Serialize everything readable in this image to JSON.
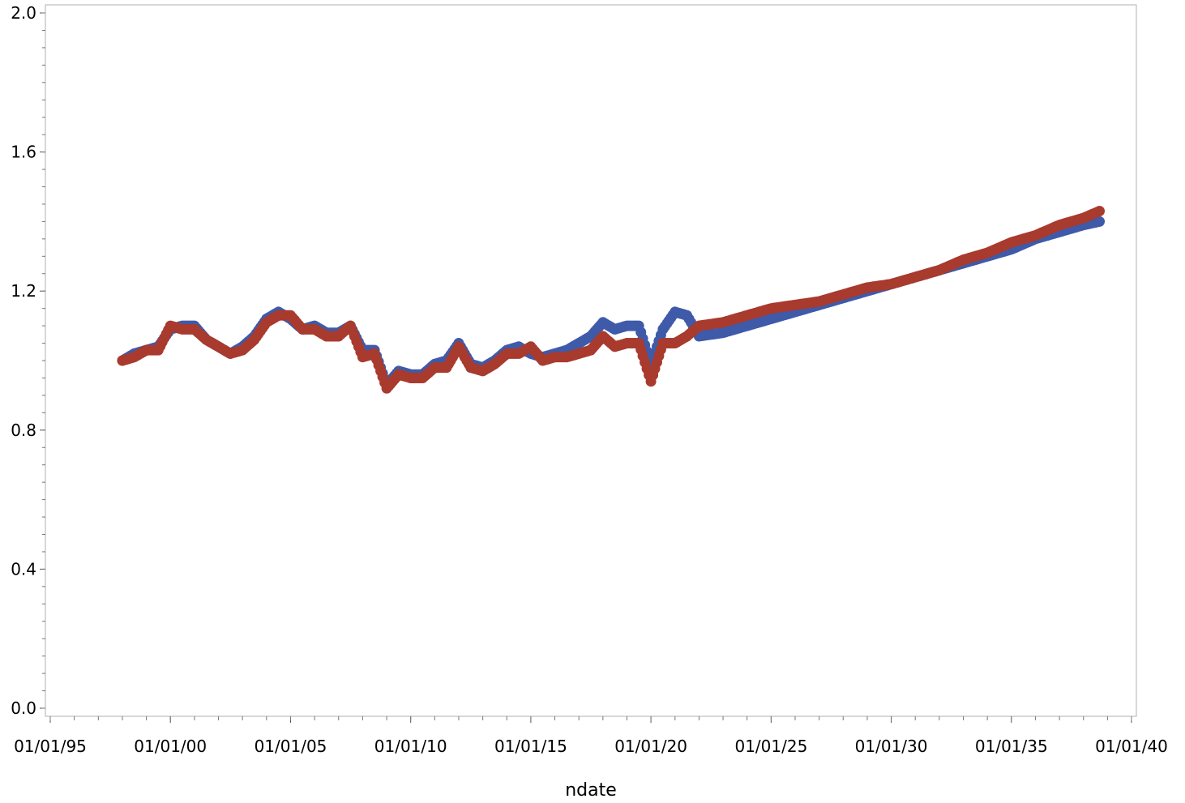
{
  "chart_data": {
    "type": "scatter",
    "title": "",
    "xlabel": "ndate",
    "ylabel": "",
    "x_axis": {
      "type": "date",
      "min": "1995-01-01",
      "max": "2040-01-01",
      "ticks": [
        {
          "value": "1995-01-01",
          "label": "01/01/95"
        },
        {
          "value": "2000-01-01",
          "label": "01/01/00"
        },
        {
          "value": "2005-01-01",
          "label": "01/01/05"
        },
        {
          "value": "2010-01-01",
          "label": "01/01/10"
        },
        {
          "value": "2015-01-01",
          "label": "01/01/15"
        },
        {
          "value": "2020-01-01",
          "label": "01/01/20"
        },
        {
          "value": "2025-01-01",
          "label": "01/01/25"
        },
        {
          "value": "2030-01-01",
          "label": "01/01/30"
        },
        {
          "value": "2035-01-01",
          "label": "01/01/35"
        },
        {
          "value": "2040-01-01",
          "label": "01/01/40"
        }
      ]
    },
    "y_axis": {
      "min": 0.0,
      "max": 2.0,
      "ticks": [
        {
          "value": 0.0,
          "label": "0.0"
        },
        {
          "value": 0.4,
          "label": "0.4"
        },
        {
          "value": 0.8,
          "label": "0.8"
        },
        {
          "value": 1.2,
          "label": "1.2"
        },
        {
          "value": 1.6,
          "label": "1.6"
        },
        {
          "value": 2.0,
          "label": "2.0"
        }
      ]
    },
    "grid": false,
    "legend": "none",
    "series": [
      {
        "color": "#3f5aa8",
        "points": [
          [
            "1998-01-01",
            1.0
          ],
          [
            "1998-07-01",
            1.02
          ],
          [
            "1999-01-01",
            1.03
          ],
          [
            "1999-07-01",
            1.04
          ],
          [
            "2000-01-01",
            1.09
          ],
          [
            "2000-07-01",
            1.1
          ],
          [
            "2001-01-01",
            1.1
          ],
          [
            "2001-07-01",
            1.06
          ],
          [
            "2002-01-01",
            1.04
          ],
          [
            "2002-07-01",
            1.02
          ],
          [
            "2003-01-01",
            1.04
          ],
          [
            "2003-07-01",
            1.07
          ],
          [
            "2004-01-01",
            1.12
          ],
          [
            "2004-07-01",
            1.14
          ],
          [
            "2005-01-01",
            1.12
          ],
          [
            "2005-07-01",
            1.09
          ],
          [
            "2006-01-01",
            1.1
          ],
          [
            "2006-07-01",
            1.08
          ],
          [
            "2007-01-01",
            1.08
          ],
          [
            "2007-07-01",
            1.1
          ],
          [
            "2008-01-01",
            1.03
          ],
          [
            "2008-07-01",
            1.03
          ],
          [
            "2009-01-01",
            0.93
          ],
          [
            "2009-07-01",
            0.97
          ],
          [
            "2010-01-01",
            0.96
          ],
          [
            "2010-07-01",
            0.96
          ],
          [
            "2011-01-01",
            0.99
          ],
          [
            "2011-07-01",
            1.0
          ],
          [
            "2012-01-01",
            1.05
          ],
          [
            "2012-07-01",
            0.99
          ],
          [
            "2013-01-01",
            0.98
          ],
          [
            "2013-07-01",
            1.0
          ],
          [
            "2014-01-01",
            1.03
          ],
          [
            "2014-07-01",
            1.04
          ],
          [
            "2015-01-01",
            1.02
          ],
          [
            "2015-07-01",
            1.01
          ],
          [
            "2016-01-01",
            1.02
          ],
          [
            "2016-07-01",
            1.03
          ],
          [
            "2017-01-01",
            1.05
          ],
          [
            "2017-07-01",
            1.07
          ],
          [
            "2018-01-01",
            1.11
          ],
          [
            "2018-07-01",
            1.09
          ],
          [
            "2019-01-01",
            1.1
          ],
          [
            "2019-07-01",
            1.1
          ],
          [
            "2020-01-01",
            0.99
          ],
          [
            "2020-07-01",
            1.09
          ],
          [
            "2021-01-01",
            1.14
          ],
          [
            "2021-07-01",
            1.13
          ],
          [
            "2022-01-01",
            1.07
          ],
          [
            "2023-01-01",
            1.08
          ],
          [
            "2024-01-01",
            1.1
          ],
          [
            "2025-01-01",
            1.12
          ],
          [
            "2026-01-01",
            1.14
          ],
          [
            "2027-01-01",
            1.16
          ],
          [
            "2028-01-01",
            1.18
          ],
          [
            "2029-01-01",
            1.2
          ],
          [
            "2030-01-01",
            1.22
          ],
          [
            "2031-01-01",
            1.24
          ],
          [
            "2032-01-01",
            1.26
          ],
          [
            "2033-01-01",
            1.28
          ],
          [
            "2034-01-01",
            1.3
          ],
          [
            "2035-01-01",
            1.32
          ],
          [
            "2036-01-01",
            1.35
          ],
          [
            "2037-01-01",
            1.37
          ],
          [
            "2038-01-01",
            1.39
          ],
          [
            "2038-09-01",
            1.4
          ]
        ]
      },
      {
        "color": "#a83a2e",
        "points": [
          [
            "1998-01-01",
            1.0
          ],
          [
            "1998-07-01",
            1.01
          ],
          [
            "1999-01-01",
            1.03
          ],
          [
            "1999-07-01",
            1.03
          ],
          [
            "2000-01-01",
            1.1
          ],
          [
            "2000-07-01",
            1.09
          ],
          [
            "2001-01-01",
            1.09
          ],
          [
            "2001-07-01",
            1.06
          ],
          [
            "2002-01-01",
            1.04
          ],
          [
            "2002-07-01",
            1.02
          ],
          [
            "2003-01-01",
            1.03
          ],
          [
            "2003-07-01",
            1.06
          ],
          [
            "2004-01-01",
            1.11
          ],
          [
            "2004-07-01",
            1.13
          ],
          [
            "2005-01-01",
            1.13
          ],
          [
            "2005-07-01",
            1.09
          ],
          [
            "2006-01-01",
            1.09
          ],
          [
            "2006-07-01",
            1.07
          ],
          [
            "2007-01-01",
            1.07
          ],
          [
            "2007-07-01",
            1.1
          ],
          [
            "2008-01-01",
            1.01
          ],
          [
            "2008-07-01",
            1.02
          ],
          [
            "2009-01-01",
            0.92
          ],
          [
            "2009-07-01",
            0.96
          ],
          [
            "2010-01-01",
            0.95
          ],
          [
            "2010-07-01",
            0.95
          ],
          [
            "2011-01-01",
            0.98
          ],
          [
            "2011-07-01",
            0.98
          ],
          [
            "2012-01-01",
            1.04
          ],
          [
            "2012-07-01",
            0.98
          ],
          [
            "2013-01-01",
            0.97
          ],
          [
            "2013-07-01",
            0.99
          ],
          [
            "2014-01-01",
            1.02
          ],
          [
            "2014-07-01",
            1.02
          ],
          [
            "2015-01-01",
            1.04
          ],
          [
            "2015-07-01",
            1.0
          ],
          [
            "2016-01-01",
            1.01
          ],
          [
            "2016-07-01",
            1.01
          ],
          [
            "2017-01-01",
            1.02
          ],
          [
            "2017-07-01",
            1.03
          ],
          [
            "2018-01-01",
            1.07
          ],
          [
            "2018-07-01",
            1.04
          ],
          [
            "2019-01-01",
            1.05
          ],
          [
            "2019-07-01",
            1.05
          ],
          [
            "2020-01-01",
            0.94
          ],
          [
            "2020-07-01",
            1.05
          ],
          [
            "2021-01-01",
            1.05
          ],
          [
            "2021-07-01",
            1.07
          ],
          [
            "2022-01-01",
            1.1
          ],
          [
            "2023-01-01",
            1.11
          ],
          [
            "2024-01-01",
            1.13
          ],
          [
            "2025-01-01",
            1.15
          ],
          [
            "2026-01-01",
            1.16
          ],
          [
            "2027-01-01",
            1.17
          ],
          [
            "2028-01-01",
            1.19
          ],
          [
            "2029-01-01",
            1.21
          ],
          [
            "2030-01-01",
            1.22
          ],
          [
            "2031-01-01",
            1.24
          ],
          [
            "2032-01-01",
            1.26
          ],
          [
            "2033-01-01",
            1.29
          ],
          [
            "2034-01-01",
            1.31
          ],
          [
            "2035-01-01",
            1.34
          ],
          [
            "2036-01-01",
            1.36
          ],
          [
            "2037-01-01",
            1.39
          ],
          [
            "2038-01-01",
            1.41
          ],
          [
            "2038-09-01",
            1.43
          ]
        ]
      }
    ]
  }
}
